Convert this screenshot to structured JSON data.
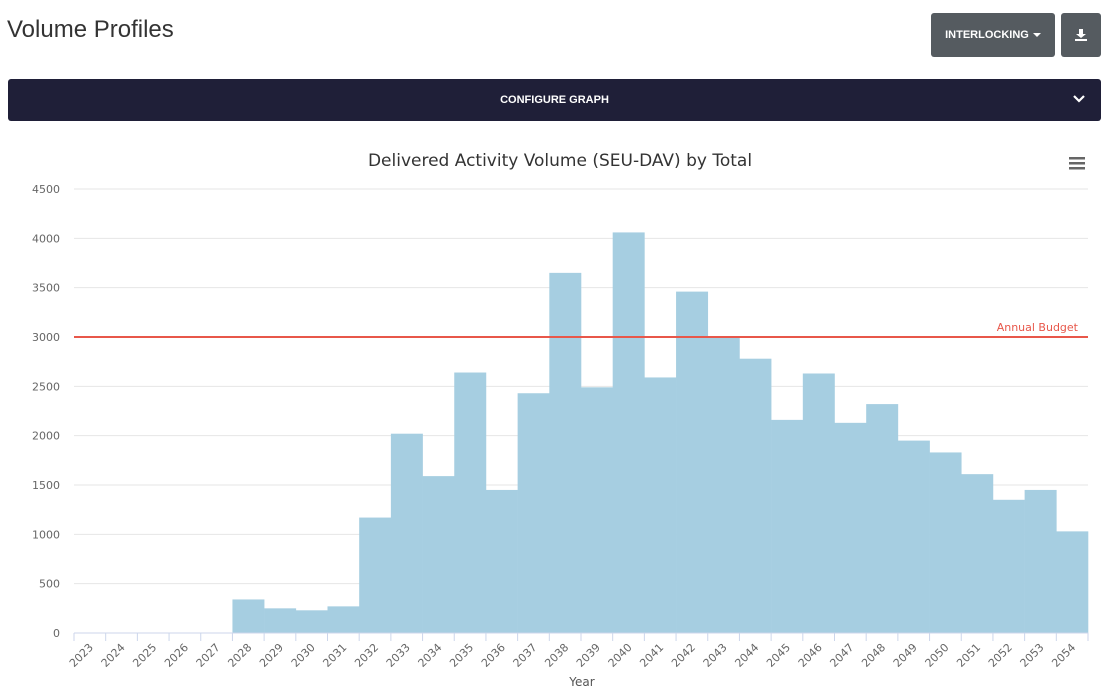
{
  "header": {
    "title": "Volume Profiles",
    "buttons": [
      "INTERLOCKING"
    ]
  },
  "config_bar": {
    "label": "CONFIGURE GRAPH"
  },
  "chart_data": {
    "type": "bar",
    "title": "Delivered Activity Volume (SEU-DAV) by Total",
    "x_label": "Year",
    "categories": [
      "2023",
      "2024",
      "2025",
      "2026",
      "2027",
      "2028",
      "2029",
      "2030",
      "2031",
      "2032",
      "2033",
      "2034",
      "2035",
      "2036",
      "2037",
      "2038",
      "2039",
      "2040",
      "2041",
      "2042",
      "2043",
      "2044",
      "2045",
      "2046",
      "2047",
      "2048",
      "2049",
      "2050",
      "2051",
      "2052",
      "2053",
      "2054"
    ],
    "values": [
      0,
      0,
      0,
      0,
      0,
      340,
      250,
      230,
      270,
      1170,
      2020,
      1590,
      2640,
      1450,
      2430,
      3650,
      2490,
      4060,
      2590,
      3460,
      3000,
      2780,
      2160,
      2630,
      2130,
      2320,
      1950,
      1830,
      1610,
      1350,
      1450,
      1030
    ],
    "color": "#a6cee1",
    "ylim": [
      0,
      4500
    ],
    "yticks": [
      0,
      500,
      1000,
      1500,
      2000,
      2500,
      3000,
      3500,
      4000,
      4500
    ],
    "grid": true,
    "reference_lines": [
      {
        "value": 3000,
        "label": "Annual Budget",
        "color": "#e8574a"
      }
    ]
  }
}
